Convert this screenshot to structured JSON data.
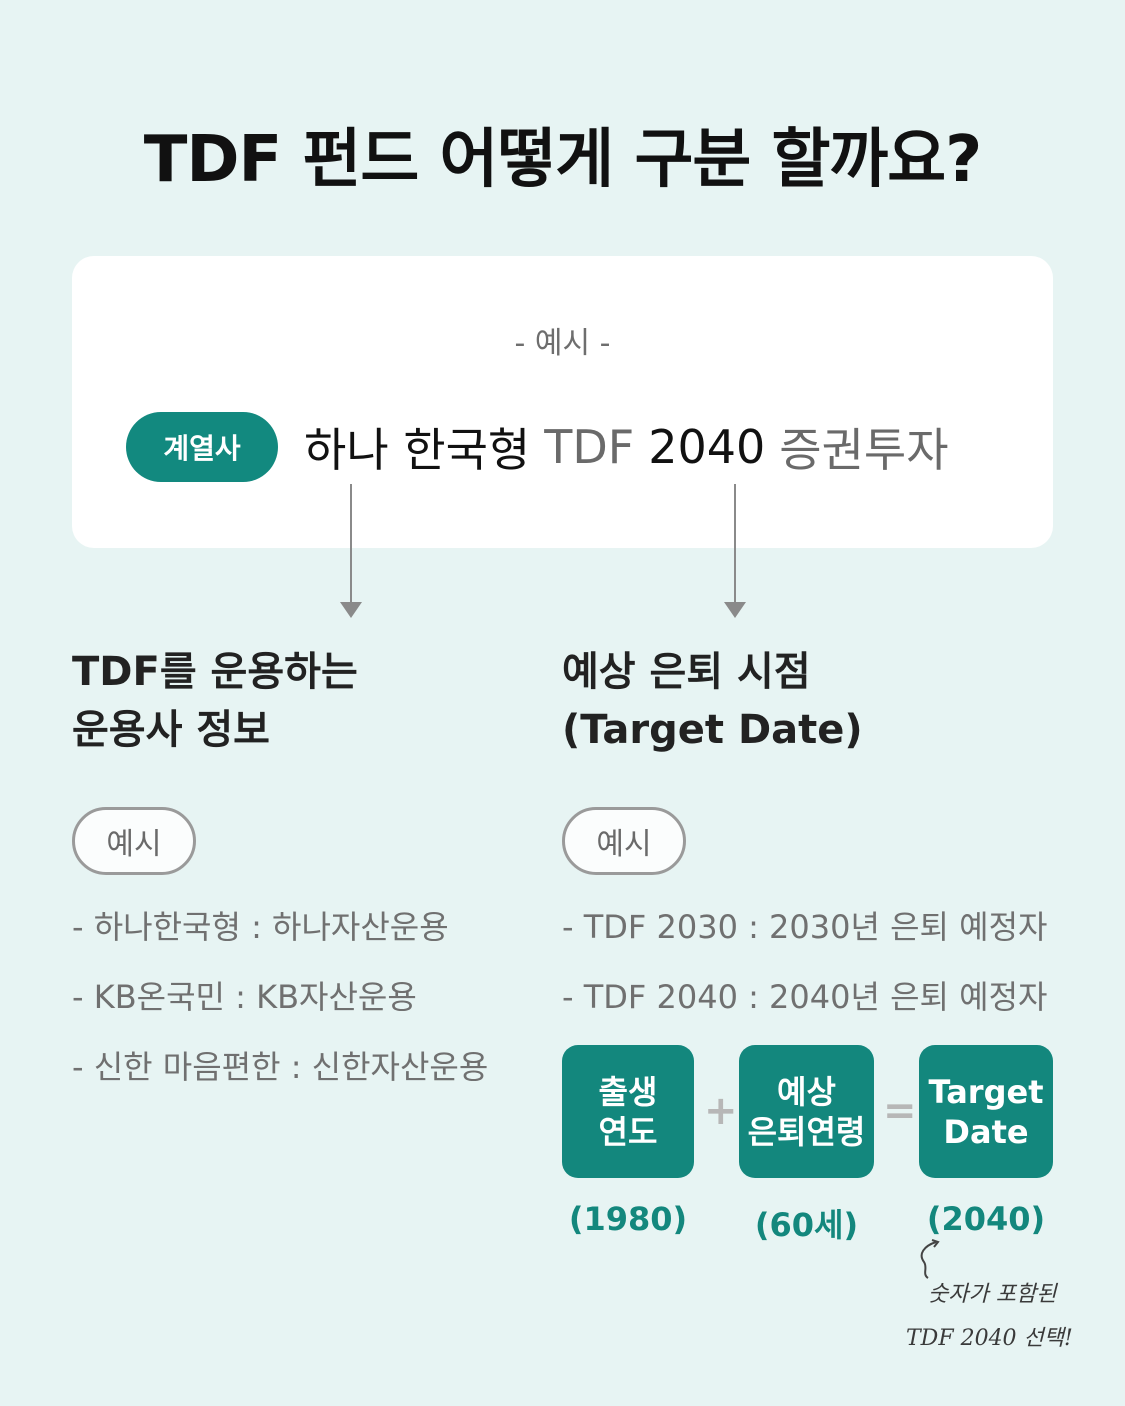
{
  "title": "TDF 펀드 어떻게 구분 할까요?",
  "card": {
    "subtitle": "- 예시 -",
    "tag": "계열사",
    "fund_parts": {
      "company": "하나 한국형",
      "tdf": "TDF",
      "year": "2040",
      "type": "증권투자"
    }
  },
  "left": {
    "heading_line1": "TDF를 운용하는",
    "heading_line2": "운용사 정보",
    "example_label": "예시",
    "items": [
      "- 하나한국형 : 하나자산운용",
      "- KB온국민 : KB자산운용",
      "- 신한 마음편한 : 신한자산운용"
    ]
  },
  "right": {
    "heading_line1": "예상 은퇴 시점",
    "heading_line2": "(Target Date)",
    "example_label": "예시",
    "items": [
      "- TDF 2030 : 2030년 은퇴 예정자",
      "- TDF 2040 : 2040년 은퇴 예정자"
    ]
  },
  "formula": {
    "box1_line1": "출생",
    "box1_line2": "연도",
    "plus": "+",
    "box2_line1": "예상",
    "box2_line2": "은퇴연령",
    "equals": "=",
    "box3_line1": "Target",
    "box3_line2": "Date",
    "value1": "(1980)",
    "value2": "(60세)",
    "value3": "(2040)"
  },
  "note": {
    "line1": "숫자가 포함된",
    "line2": "TDF 2040 선택!"
  }
}
